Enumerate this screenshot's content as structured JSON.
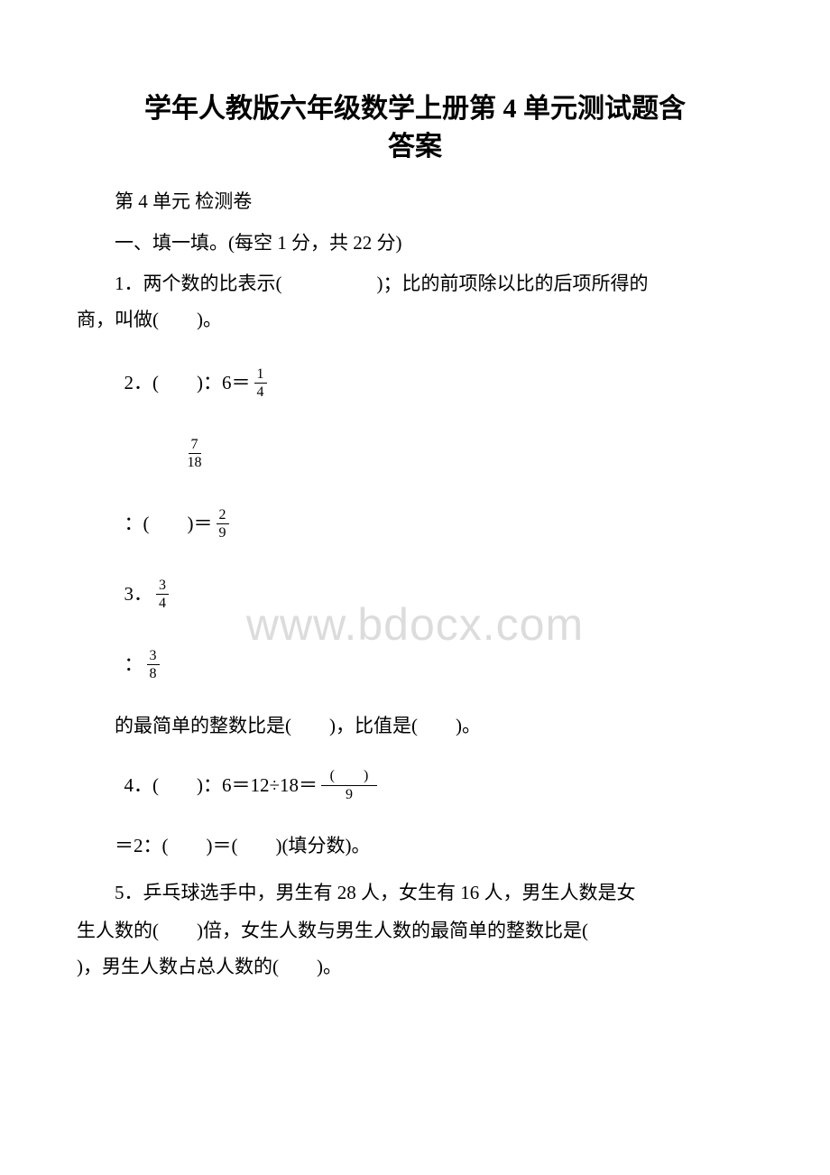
{
  "watermark": "www.bdocx.com",
  "title_line1": "学年人教版六年级数学上册第 4 单元测试题含",
  "title_line2": "答案",
  "sub_title": "第 4 单元 检测卷",
  "section1": "一、填一填。(每空 1 分，共 22 分)",
  "q1_line1": "1．两个数的比表示(　　　　　)；比的前项除以比的后项所得的",
  "q1_line2": "商，叫做(　　)。",
  "q2_prefix": "2．(　　)：6＝",
  "q2_frac1_num": "1",
  "q2_frac1_den": "4",
  "q2_frac2_num": "7",
  "q2_frac2_den": "18",
  "q2_mid": "：(　　)＝",
  "q2_frac3_num": "2",
  "q2_frac3_den": "9",
  "q3_prefix": "3．",
  "q3_frac1_num": "3",
  "q3_frac1_den": "4",
  "q3_colon": "：",
  "q3_frac2_num": "3",
  "q3_frac2_den": "8",
  "q3_text": "的最简单的整数比是(　　)，比值是(　　)。",
  "q4_prefix": "4．(　　)：6＝12÷18＝",
  "q4_frac_num": "(　　)",
  "q4_frac_den": "9",
  "q4_line2": "＝2：(　　)＝(　　)(填分数)。",
  "q5_line1": "5．乒乓球选手中，男生有 28 人，女生有 16 人，男生人数是女",
  "q5_line2": "生人数的(　　)倍，女生人数与男生人数的最简单的整数比是(　　",
  "q5_line3": ")，男生人数占总人数的(　　)。"
}
